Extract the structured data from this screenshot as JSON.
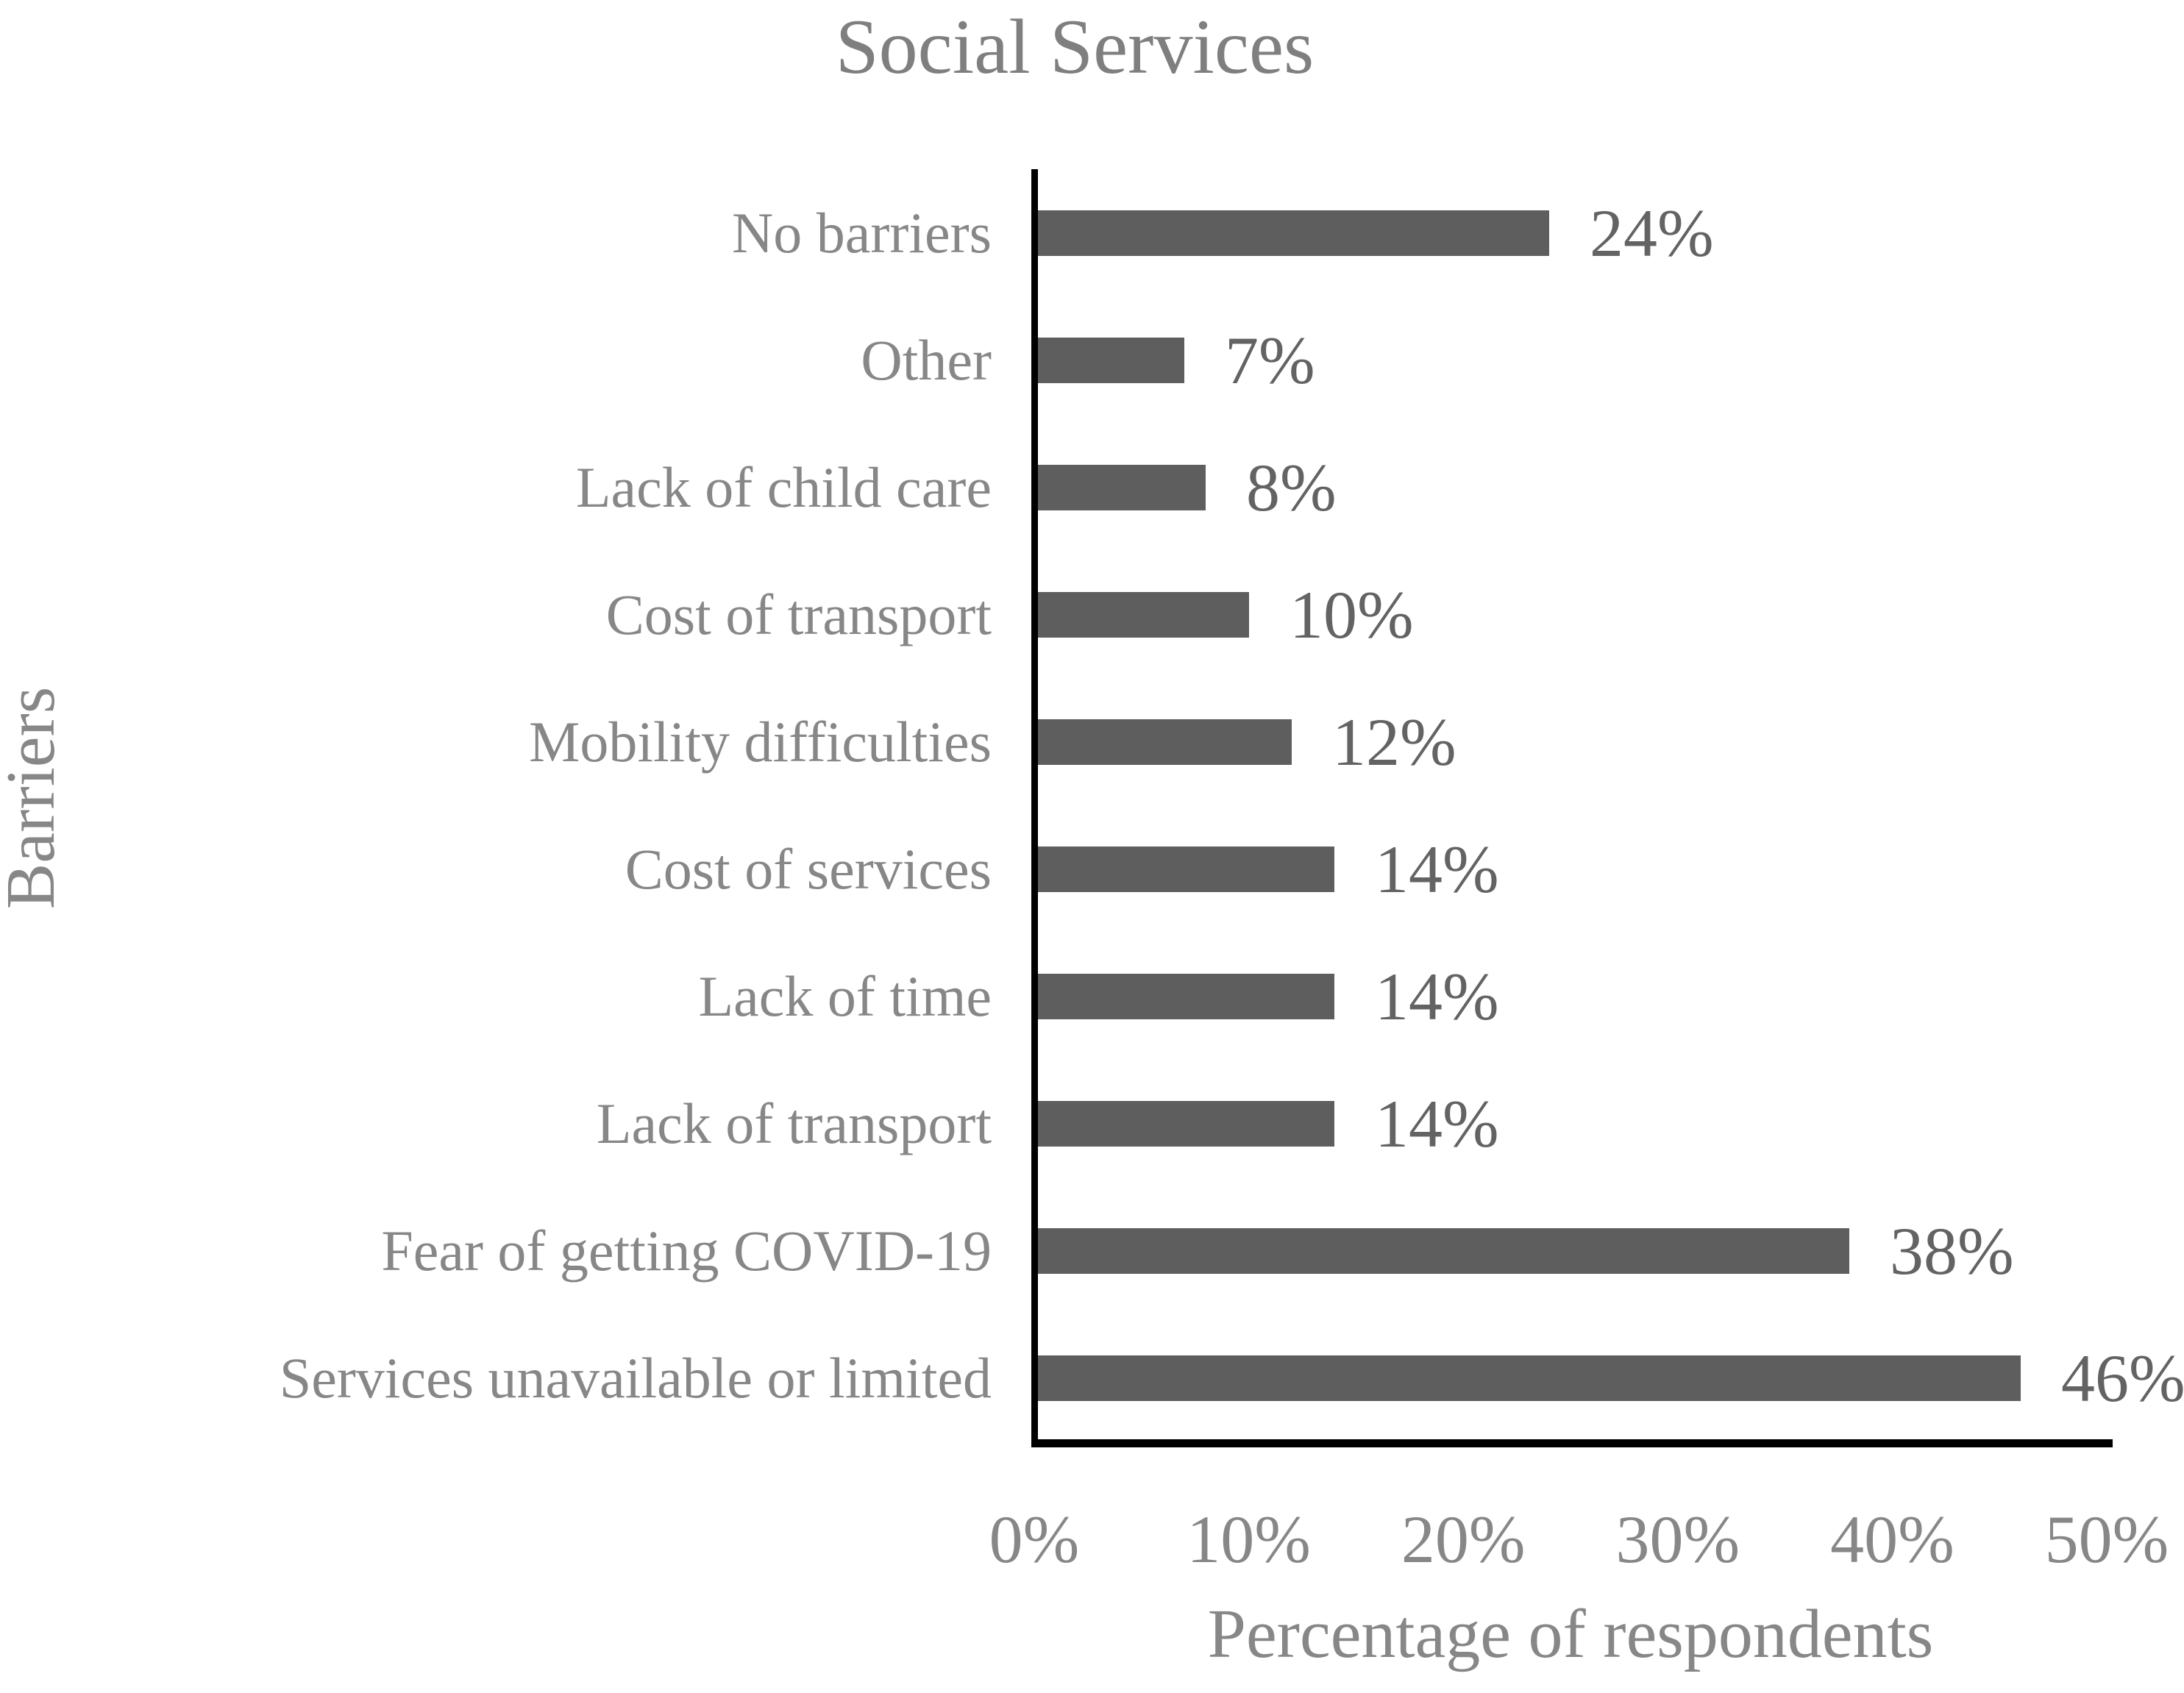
{
  "chart_data": {
    "type": "bar",
    "orientation": "horizontal",
    "title": "Social Services",
    "xlabel": "Percentage of respondents",
    "ylabel": "Barriers",
    "categories": [
      "No barriers",
      "Other",
      "Lack of child care",
      "Cost of transport",
      "Mobility difficulties",
      "Cost of services",
      "Lack of time",
      "Lack of transport",
      "Fear of getting COVID-19",
      "Services unavailable or limited"
    ],
    "values": [
      24,
      7,
      8,
      10,
      12,
      14,
      14,
      14,
      38,
      46
    ],
    "data_labels": [
      "24%",
      "7%",
      "8%",
      "10%",
      "12%",
      "14%",
      "14%",
      "14%",
      "38%",
      "46%"
    ],
    "xlim": [
      0,
      50
    ],
    "x_ticks": [
      "0%",
      "10%",
      "20%",
      "30%",
      "40%",
      "50%"
    ],
    "grid": false,
    "legend": false,
    "colors": {
      "bar": "#5E5E5E",
      "axis_line": "#000000",
      "category_label": "#878787",
      "tick_label": "#878787",
      "axis_title": "#878787",
      "data_label": "#636363",
      "chart_title": "#7F7F7F",
      "background": "#FFFFFF"
    }
  }
}
